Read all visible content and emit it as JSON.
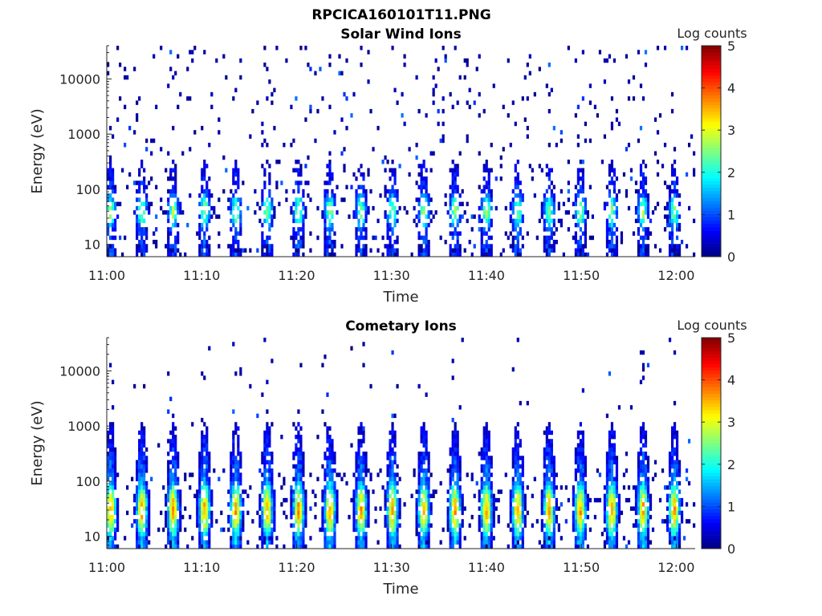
{
  "figure": {
    "title": "RPCICA160101T11.PNG"
  },
  "chart_data": [
    {
      "type": "heatmap",
      "title": "Solar Wind Ions",
      "xlabel": "Time",
      "ylabel": "Energy (eV)",
      "x_range": [
        "11:00",
        "12:02"
      ],
      "x_ticks": [
        "11:00",
        "11:10",
        "11:20",
        "11:30",
        "11:40",
        "11:50",
        "12:00"
      ],
      "y_scale": "log",
      "y_range": [
        6,
        40000
      ],
      "y_ticks": [
        10,
        100,
        1000,
        10000
      ],
      "y_tick_labels": [
        "10",
        "100",
        "1000",
        "10000"
      ],
      "colorbar": {
        "label": "Log counts",
        "range": [
          0,
          5
        ],
        "ticks": [
          "0",
          "1",
          "2",
          "3",
          "4",
          "5"
        ],
        "colormap": "jet"
      },
      "pattern": {
        "period_min": 3.3,
        "first_pulse_min": 0.4,
        "peak_energy_ev": 40,
        "peak_log_counts": 2.6,
        "background": "sparse"
      }
    },
    {
      "type": "heatmap",
      "title": "Cometary Ions",
      "xlabel": "Time",
      "ylabel": "Energy (eV)",
      "x_range": [
        "11:00",
        "12:02"
      ],
      "x_ticks": [
        "11:00",
        "11:10",
        "11:20",
        "11:30",
        "11:40",
        "11:50",
        "12:00"
      ],
      "y_scale": "log",
      "y_range": [
        6,
        40000
      ],
      "y_ticks": [
        10,
        100,
        1000,
        10000
      ],
      "y_tick_labels": [
        "10",
        "100",
        "1000",
        "10000"
      ],
      "colorbar": {
        "label": "Log counts",
        "range": [
          0,
          5
        ],
        "ticks": [
          "0",
          "1",
          "2",
          "3",
          "4",
          "5"
        ],
        "colormap": "jet"
      },
      "pattern": {
        "period_min": 3.3,
        "first_pulse_min": 0.4,
        "peak_energy_ev": 30,
        "peak_log_counts": 3.6,
        "background": "dense"
      }
    }
  ]
}
